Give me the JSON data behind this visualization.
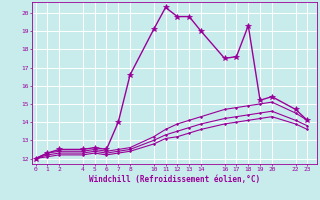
{
  "title": "",
  "xlabel": "Windchill (Refroidissement éolien,°C)",
  "ylabel": "",
  "background_color": "#c8ecec",
  "grid_color": "#ffffff",
  "line_color": "#990099",
  "x_ticks": [
    0,
    1,
    2,
    4,
    5,
    6,
    7,
    8,
    10,
    11,
    12,
    13,
    14,
    16,
    17,
    18,
    19,
    20,
    22,
    23
  ],
  "xlim": [
    -0.3,
    23.8
  ],
  "ylim": [
    11.7,
    20.6
  ],
  "y_ticks": [
    12,
    13,
    14,
    15,
    16,
    17,
    18,
    19,
    20
  ],
  "series": [
    {
      "x": [
        0,
        1,
        2,
        4,
        5,
        6,
        7,
        8,
        10,
        11,
        12,
        13,
        14,
        16,
        17,
        18,
        19,
        20,
        22,
        23
      ],
      "y": [
        12.0,
        12.3,
        12.5,
        12.5,
        12.6,
        12.5,
        14.0,
        16.6,
        19.1,
        20.3,
        19.8,
        19.8,
        19.0,
        17.5,
        17.6,
        19.3,
        15.2,
        15.4,
        14.7,
        14.1
      ],
      "marker": "*",
      "linestyle": "-",
      "linewidth": 1.0,
      "markersize": 4
    },
    {
      "x": [
        0,
        1,
        2,
        4,
        5,
        6,
        7,
        8,
        10,
        11,
        12,
        13,
        14,
        16,
        17,
        18,
        19,
        20,
        22,
        23
      ],
      "y": [
        12.0,
        12.3,
        12.4,
        12.4,
        12.5,
        12.4,
        12.5,
        12.6,
        13.2,
        13.6,
        13.9,
        14.1,
        14.3,
        14.7,
        14.8,
        14.9,
        15.0,
        15.1,
        14.5,
        14.1
      ],
      "marker": ".",
      "linestyle": "-",
      "linewidth": 0.8,
      "markersize": 2.5
    },
    {
      "x": [
        0,
        1,
        2,
        4,
        5,
        6,
        7,
        8,
        10,
        11,
        12,
        13,
        14,
        16,
        17,
        18,
        19,
        20,
        22,
        23
      ],
      "y": [
        12.0,
        12.2,
        12.3,
        12.3,
        12.4,
        12.3,
        12.4,
        12.5,
        13.0,
        13.3,
        13.5,
        13.7,
        13.9,
        14.2,
        14.3,
        14.4,
        14.5,
        14.6,
        14.1,
        13.8
      ],
      "marker": ".",
      "linestyle": "-",
      "linewidth": 0.8,
      "markersize": 2.5
    },
    {
      "x": [
        0,
        1,
        2,
        4,
        5,
        6,
        7,
        8,
        10,
        11,
        12,
        13,
        14,
        16,
        17,
        18,
        19,
        20,
        22,
        23
      ],
      "y": [
        12.0,
        12.1,
        12.2,
        12.2,
        12.3,
        12.2,
        12.3,
        12.4,
        12.8,
        13.1,
        13.2,
        13.4,
        13.6,
        13.9,
        14.0,
        14.1,
        14.2,
        14.3,
        13.9,
        13.6
      ],
      "marker": ".",
      "linestyle": "-",
      "linewidth": 0.8,
      "markersize": 2.5
    }
  ]
}
